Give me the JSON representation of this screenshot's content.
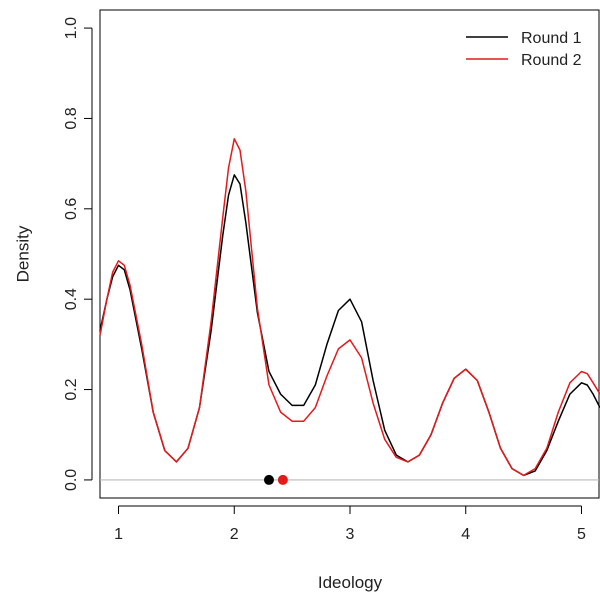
{
  "chart_data": {
    "type": "line",
    "title": "",
    "xlabel": "Ideology",
    "ylabel": "Density",
    "xlim": [
      0.84,
      5.16
    ],
    "ylim": [
      -0.04,
      1.04
    ],
    "x_ticks": [
      1,
      2,
      3,
      4,
      5
    ],
    "x_tick_labels": [
      "1",
      "2",
      "3",
      "4",
      "5"
    ],
    "y_ticks": [
      0.0,
      0.2,
      0.4,
      0.6,
      0.8,
      1.0
    ],
    "y_tick_labels": [
      "0.0",
      "0.2",
      "0.4",
      "0.6",
      "0.8",
      "1.0"
    ],
    "legend_position": "top-right",
    "reference_line": {
      "y": 0,
      "color": "#bbbbbb"
    },
    "series": [
      {
        "name": "Round 1",
        "color": "#000000",
        "points": [
          [
            0.84,
            0.33
          ],
          [
            0.9,
            0.4
          ],
          [
            0.95,
            0.45
          ],
          [
            1.0,
            0.475
          ],
          [
            1.05,
            0.465
          ],
          [
            1.1,
            0.42
          ],
          [
            1.2,
            0.29
          ],
          [
            1.3,
            0.15
          ],
          [
            1.4,
            0.065
          ],
          [
            1.5,
            0.04
          ],
          [
            1.6,
            0.07
          ],
          [
            1.7,
            0.16
          ],
          [
            1.8,
            0.33
          ],
          [
            1.9,
            0.54
          ],
          [
            1.95,
            0.63
          ],
          [
            2.0,
            0.675
          ],
          [
            2.05,
            0.655
          ],
          [
            2.1,
            0.57
          ],
          [
            2.2,
            0.37
          ],
          [
            2.3,
            0.24
          ],
          [
            2.4,
            0.19
          ],
          [
            2.5,
            0.165
          ],
          [
            2.6,
            0.165
          ],
          [
            2.7,
            0.21
          ],
          [
            2.8,
            0.3
          ],
          [
            2.9,
            0.375
          ],
          [
            3.0,
            0.4
          ],
          [
            3.1,
            0.35
          ],
          [
            3.2,
            0.22
          ],
          [
            3.3,
            0.11
          ],
          [
            3.4,
            0.055
          ],
          [
            3.5,
            0.04
          ],
          [
            3.6,
            0.055
          ],
          [
            3.7,
            0.1
          ],
          [
            3.8,
            0.17
          ],
          [
            3.9,
            0.225
          ],
          [
            4.0,
            0.245
          ],
          [
            4.1,
            0.22
          ],
          [
            4.2,
            0.15
          ],
          [
            4.3,
            0.07
          ],
          [
            4.4,
            0.025
          ],
          [
            4.5,
            0.01
          ],
          [
            4.6,
            0.02
          ],
          [
            4.7,
            0.065
          ],
          [
            4.8,
            0.13
          ],
          [
            4.9,
            0.19
          ],
          [
            5.0,
            0.215
          ],
          [
            5.05,
            0.21
          ],
          [
            5.1,
            0.19
          ],
          [
            5.16,
            0.16
          ]
        ],
        "mean_marker": 2.3
      },
      {
        "name": "Round 2",
        "color": "#e41a1c",
        "points": [
          [
            0.84,
            0.32
          ],
          [
            0.9,
            0.4
          ],
          [
            0.95,
            0.46
          ],
          [
            1.0,
            0.485
          ],
          [
            1.05,
            0.475
          ],
          [
            1.1,
            0.43
          ],
          [
            1.2,
            0.3
          ],
          [
            1.3,
            0.15
          ],
          [
            1.4,
            0.065
          ],
          [
            1.5,
            0.04
          ],
          [
            1.6,
            0.07
          ],
          [
            1.7,
            0.16
          ],
          [
            1.8,
            0.35
          ],
          [
            1.9,
            0.58
          ],
          [
            1.95,
            0.69
          ],
          [
            2.0,
            0.755
          ],
          [
            2.05,
            0.73
          ],
          [
            2.1,
            0.64
          ],
          [
            2.2,
            0.38
          ],
          [
            2.3,
            0.21
          ],
          [
            2.4,
            0.15
          ],
          [
            2.5,
            0.13
          ],
          [
            2.6,
            0.13
          ],
          [
            2.7,
            0.16
          ],
          [
            2.8,
            0.23
          ],
          [
            2.9,
            0.29
          ],
          [
            3.0,
            0.31
          ],
          [
            3.1,
            0.27
          ],
          [
            3.2,
            0.17
          ],
          [
            3.3,
            0.09
          ],
          [
            3.4,
            0.05
          ],
          [
            3.5,
            0.04
          ],
          [
            3.6,
            0.055
          ],
          [
            3.7,
            0.1
          ],
          [
            3.8,
            0.17
          ],
          [
            3.9,
            0.225
          ],
          [
            4.0,
            0.245
          ],
          [
            4.1,
            0.22
          ],
          [
            4.2,
            0.15
          ],
          [
            4.3,
            0.07
          ],
          [
            4.4,
            0.025
          ],
          [
            4.5,
            0.01
          ],
          [
            4.6,
            0.025
          ],
          [
            4.7,
            0.07
          ],
          [
            4.8,
            0.15
          ],
          [
            4.9,
            0.215
          ],
          [
            5.0,
            0.24
          ],
          [
            5.05,
            0.235
          ],
          [
            5.1,
            0.215
          ],
          [
            5.16,
            0.19
          ]
        ],
        "mean_marker": 2.42
      }
    ]
  }
}
